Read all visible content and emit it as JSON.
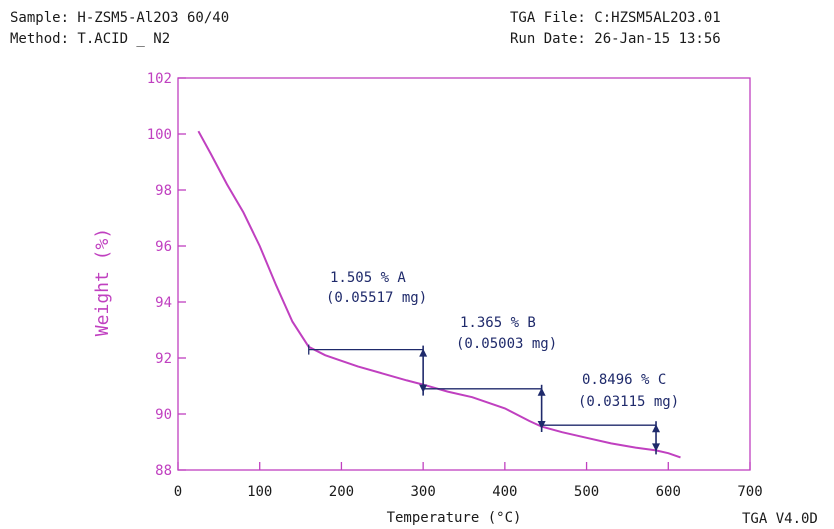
{
  "header": {
    "sample": "Sample: H-ZSM5-Al2O3 60/40",
    "method": "Method: T.ACID _ N2",
    "file": "TGA File: C:HZSM5AL2O3.01",
    "run_date": "Run Date: 26-Jan-15 13:56"
  },
  "footer": {
    "version": "TGA V4.0D"
  },
  "colors": {
    "curve": "#c040c0",
    "axis": "#c040c0",
    "annotation": "#1f2a6b",
    "text": "#1a1a1a"
  },
  "chart_data": {
    "type": "line",
    "title": "",
    "xlabel": "Temperature (°C)",
    "ylabel": "Weight (%)",
    "xlim": [
      0,
      700
    ],
    "ylim": [
      88,
      102
    ],
    "xticks": [
      0,
      100,
      200,
      300,
      400,
      500,
      600,
      700
    ],
    "yticks": [
      88,
      90,
      92,
      94,
      96,
      98,
      100,
      102
    ],
    "grid": false,
    "series": [
      {
        "x": [
          25,
          40,
          60,
          80,
          100,
          120,
          140,
          160,
          180,
          200,
          220,
          250,
          280,
          300,
          330,
          360,
          400,
          430,
          445,
          470,
          500,
          530,
          560,
          585,
          600,
          615
        ],
        "values": [
          100.1,
          99.3,
          98.2,
          97.2,
          96.0,
          94.6,
          93.3,
          92.4,
          92.1,
          91.9,
          91.7,
          91.45,
          91.2,
          91.05,
          90.8,
          90.6,
          90.2,
          89.75,
          89.55,
          89.35,
          89.15,
          88.95,
          88.8,
          88.7,
          88.6,
          88.45
        ]
      }
    ],
    "annotations": [
      {
        "line1": "1.505 % A",
        "line2": "(0.05517 mg)",
        "from_x": 160,
        "to_x": 300,
        "y_top": 92.3,
        "y_bottom": 90.8
      },
      {
        "line1": "1.365 % B",
        "line2": "(0.05003 mg)",
        "from_x": 300,
        "to_x": 445,
        "y_top": 90.9,
        "y_bottom": 89.5
      },
      {
        "line1": "0.8496 % C",
        "line2": "(0.03115 mg)",
        "from_x": 445,
        "to_x": 585,
        "y_top": 89.6,
        "y_bottom": 88.7
      }
    ]
  }
}
